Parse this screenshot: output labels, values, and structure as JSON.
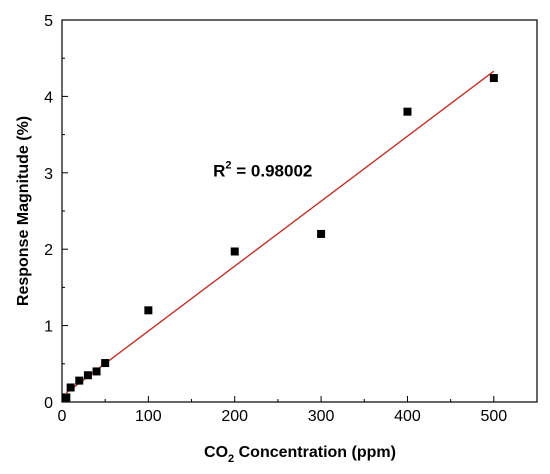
{
  "chart_data": {
    "type": "scatter",
    "title": "",
    "xlabel": {
      "main": "CO",
      "sub": "2",
      "rest": " Concentration (ppm)"
    },
    "ylabel": "Response Magnitude (%)",
    "xlim": [
      0,
      550
    ],
    "ylim": [
      0,
      5
    ],
    "xticks": [
      0,
      100,
      200,
      300,
      400,
      500
    ],
    "yticks": [
      0,
      1,
      2,
      3,
      4,
      5
    ],
    "grid": false,
    "legend": "none",
    "series": [
      {
        "marker": "square",
        "color": "#000000",
        "points": [
          {
            "x": 5,
            "y": 0.06
          },
          {
            "x": 10,
            "y": 0.19
          },
          {
            "x": 20,
            "y": 0.28
          },
          {
            "x": 30,
            "y": 0.35
          },
          {
            "x": 40,
            "y": 0.4
          },
          {
            "x": 50,
            "y": 0.51
          },
          {
            "x": 100,
            "y": 1.2
          },
          {
            "x": 200,
            "y": 1.97
          },
          {
            "x": 300,
            "y": 2.2
          },
          {
            "x": 400,
            "y": 3.8
          },
          {
            "x": 500,
            "y": 4.24
          }
        ]
      }
    ],
    "fit_line": {
      "color": "#c0302b",
      "x": [
        5,
        500
      ],
      "y": [
        0.12,
        4.33
      ]
    },
    "annotation": {
      "label": "R",
      "superscript": "2",
      "value": " = 0.98002",
      "x": 175,
      "y": 2.95
    }
  }
}
